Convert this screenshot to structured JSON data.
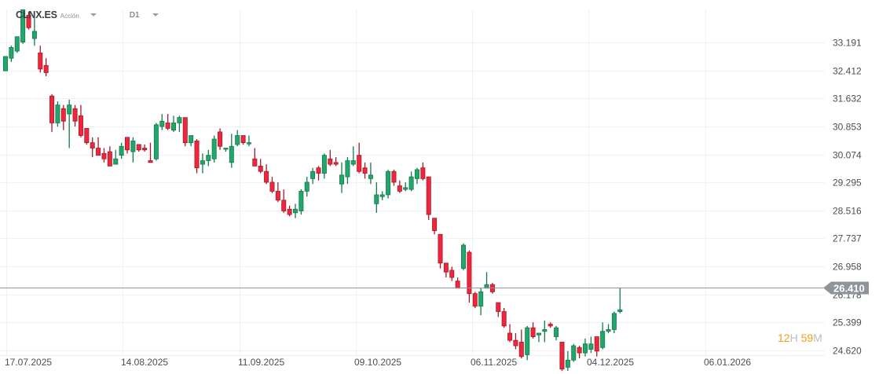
{
  "header": {
    "symbol": "CLNX.ES",
    "instrument_type": "Acción",
    "timeframe": "D1"
  },
  "current_price": {
    "label": "26.410",
    "value": 26.41,
    "color": "#8e9499"
  },
  "countdown": {
    "hours": "12",
    "hours_unit": "H",
    "minutes": "59",
    "minutes_unit": "M"
  },
  "colors": {
    "bull": "#21a66b",
    "bull_border": "#157a4c",
    "bear": "#f0263d",
    "bear_border": "#a51a2a",
    "grid": "#f0f0f0",
    "axis_text": "#4a4f55",
    "accent_orange": "#f39c12"
  },
  "chart_data": {
    "type": "candlestick",
    "title": "CLNX.ES Acción D1",
    "xlabel": "",
    "ylabel": "",
    "ylim": [
      24.4,
      33.9
    ],
    "grid": true,
    "y_ticks": [
      "33.191",
      "32.412",
      "31.632",
      "30.853",
      "30.074",
      "29.295",
      "28.516",
      "27.737",
      "26.958",
      "26.178",
      "25.399",
      "24.620"
    ],
    "x_ticks": [
      "17.07.2025",
      "14.08.2025",
      "11.09.2025",
      "09.10.2025",
      "06.11.2025",
      "04.12.2025",
      "06.01.2026"
    ],
    "candles": [
      [
        32.4,
        32.8,
        32.8,
        32.4
      ],
      [
        32.75,
        33.05,
        32.65,
        33.1
      ],
      [
        32.95,
        33.35,
        32.9,
        33.35
      ],
      [
        33.2,
        34.1,
        33.15,
        34.1
      ],
      [
        33.95,
        33.6,
        33.55,
        34.05
      ],
      [
        33.3,
        33.5,
        33.1,
        34.05
      ],
      [
        32.9,
        32.45,
        32.35,
        33.1
      ],
      [
        32.55,
        32.35,
        32.25,
        32.75
      ],
      [
        31.7,
        30.95,
        30.7,
        31.75
      ],
      [
        30.95,
        31.45,
        30.85,
        31.55
      ],
      [
        31.35,
        31.0,
        30.75,
        31.45
      ],
      [
        31.2,
        31.45,
        30.25,
        31.6
      ],
      [
        31.35,
        31.0,
        30.85,
        31.45
      ],
      [
        31.15,
        30.6,
        30.55,
        31.45
      ],
      [
        30.8,
        30.4,
        30.35,
        30.8
      ],
      [
        30.4,
        30.25,
        30.0,
        30.55
      ],
      [
        30.25,
        30.05,
        30.05,
        30.55
      ],
      [
        30.1,
        29.95,
        29.85,
        30.25
      ],
      [
        30.15,
        29.75,
        29.8,
        30.3
      ],
      [
        29.8,
        29.95,
        29.85,
        30.2
      ],
      [
        30.05,
        30.3,
        29.95,
        30.4
      ],
      [
        30.55,
        30.2,
        30.1,
        30.55
      ],
      [
        30.15,
        30.45,
        29.85,
        30.55
      ],
      [
        30.35,
        30.2,
        30.15,
        30.35
      ],
      [
        30.25,
        30.2,
        30.15,
        30.35
      ],
      [
        29.9,
        29.85,
        30.1,
        30.4
      ],
      [
        29.95,
        30.9,
        29.9,
        30.95
      ],
      [
        30.85,
        31.0,
        30.75,
        31.2
      ],
      [
        30.95,
        30.8,
        30.75,
        31.2
      ],
      [
        30.75,
        30.95,
        30.7,
        31.15
      ],
      [
        30.95,
        31.1,
        30.7,
        31.15
      ],
      [
        31.1,
        30.4,
        30.3,
        31.1
      ],
      [
        30.4,
        30.6,
        30.3,
        30.6
      ],
      [
        30.45,
        29.7,
        29.55,
        30.5
      ],
      [
        29.8,
        29.9,
        29.55,
        30.1
      ],
      [
        29.9,
        30.05,
        29.75,
        30.2
      ],
      [
        29.95,
        30.5,
        29.85,
        30.6
      ],
      [
        30.7,
        30.3,
        30.2,
        30.8
      ],
      [
        30.25,
        30.25,
        30.15,
        30.25
      ],
      [
        29.85,
        30.3,
        29.7,
        30.65
      ],
      [
        30.35,
        30.6,
        30.3,
        30.75
      ],
      [
        30.6,
        30.4,
        30.35,
        30.6
      ],
      [
        30.4,
        30.4,
        30.3,
        30.6
      ],
      [
        29.95,
        29.75,
        29.8,
        30.25
      ],
      [
        29.75,
        29.6,
        29.55,
        29.95
      ],
      [
        29.6,
        29.3,
        29.25,
        29.8
      ],
      [
        29.3,
        29.05,
        29.0,
        29.45
      ],
      [
        29.05,
        28.8,
        28.75,
        29.3
      ],
      [
        28.8,
        28.5,
        28.45,
        29.1
      ],
      [
        28.55,
        28.4,
        28.35,
        28.65
      ],
      [
        28.45,
        28.55,
        28.3,
        28.7
      ],
      [
        28.5,
        29.05,
        28.4,
        29.1
      ],
      [
        29.05,
        29.3,
        28.9,
        29.45
      ],
      [
        29.4,
        29.6,
        29.25,
        29.7
      ],
      [
        29.7,
        29.55,
        29.35,
        29.75
      ],
      [
        29.55,
        30.05,
        29.4,
        30.1
      ],
      [
        29.95,
        29.8,
        29.75,
        30.2
      ],
      [
        29.85,
        29.8,
        29.75,
        30.0
      ],
      [
        29.25,
        29.5,
        29.0,
        29.85
      ],
      [
        29.45,
        29.9,
        29.25,
        30.0
      ],
      [
        29.8,
        29.9,
        29.75,
        30.3
      ],
      [
        30.05,
        29.6,
        29.55,
        30.4
      ],
      [
        29.7,
        29.55,
        29.4,
        29.85
      ],
      [
        29.4,
        29.5,
        29.25,
        29.85
      ],
      [
        28.7,
        28.95,
        28.45,
        29.3
      ],
      [
        28.9,
        28.95,
        28.8,
        29.05
      ],
      [
        28.95,
        29.6,
        28.85,
        29.65
      ],
      [
        29.6,
        29.3,
        29.2,
        29.65
      ],
      [
        29.2,
        29.05,
        29.0,
        29.35
      ],
      [
        29.1,
        29.15,
        29.05,
        29.3
      ],
      [
        29.1,
        29.45,
        29.05,
        29.6
      ],
      [
        29.4,
        29.65,
        29.25,
        29.7
      ],
      [
        29.7,
        29.4,
        29.35,
        29.85
      ],
      [
        29.45,
        28.4,
        28.25,
        29.45
      ],
      [
        28.3,
        27.95,
        27.85,
        28.3
      ],
      [
        27.85,
        27.05,
        26.9,
        27.85
      ],
      [
        27.05,
        26.8,
        26.65,
        27.05
      ],
      [
        26.85,
        26.65,
        26.55,
        26.95
      ],
      [
        26.55,
        26.35,
        26.35,
        26.65
      ],
      [
        26.9,
        27.55,
        26.85,
        27.6
      ],
      [
        27.35,
        26.2,
        25.95,
        27.4
      ],
      [
        26.2,
        25.85,
        25.8,
        26.25
      ],
      [
        25.85,
        26.25,
        25.6,
        26.35
      ],
      [
        26.35,
        26.45,
        26.4,
        26.8
      ],
      [
        26.45,
        26.25,
        26.2,
        26.5
      ],
      [
        25.95,
        25.7,
        25.55,
        25.95
      ],
      [
        25.7,
        25.3,
        25.25,
        25.8
      ],
      [
        25.1,
        24.9,
        24.85,
        25.35
      ],
      [
        24.9,
        24.75,
        24.65,
        25.1
      ],
      [
        24.85,
        24.45,
        24.4,
        25.2
      ],
      [
        24.5,
        25.25,
        24.35,
        25.3
      ],
      [
        25.25,
        25.0,
        24.95,
        25.4
      ],
      [
        25.05,
        25.1,
        24.85,
        25.1
      ],
      [
        25.15,
        25.2,
        24.85,
        25.45
      ],
      [
        25.35,
        25.3,
        25.25,
        25.4
      ],
      [
        25.0,
        25.25,
        24.9,
        25.3
      ],
      [
        24.85,
        24.1,
        24.05,
        24.85
      ],
      [
        24.15,
        24.35,
        24.05,
        24.6
      ],
      [
        24.35,
        24.75,
        24.3,
        24.8
      ],
      [
        24.7,
        24.55,
        24.4,
        24.75
      ],
      [
        24.55,
        24.8,
        24.45,
        24.95
      ],
      [
        24.65,
        24.8,
        24.55,
        25.0
      ],
      [
        25.0,
        24.6,
        24.45,
        25.0
      ],
      [
        24.7,
        25.15,
        24.65,
        25.4
      ],
      [
        25.15,
        25.2,
        25.1,
        25.35
      ],
      [
        25.2,
        25.65,
        25.1,
        25.7
      ],
      [
        25.7,
        25.75,
        25.65,
        26.35
      ]
    ],
    "candle_colors_note": "open<close = bull (green), open>close = bear (red)",
    "last_price": 26.41
  }
}
